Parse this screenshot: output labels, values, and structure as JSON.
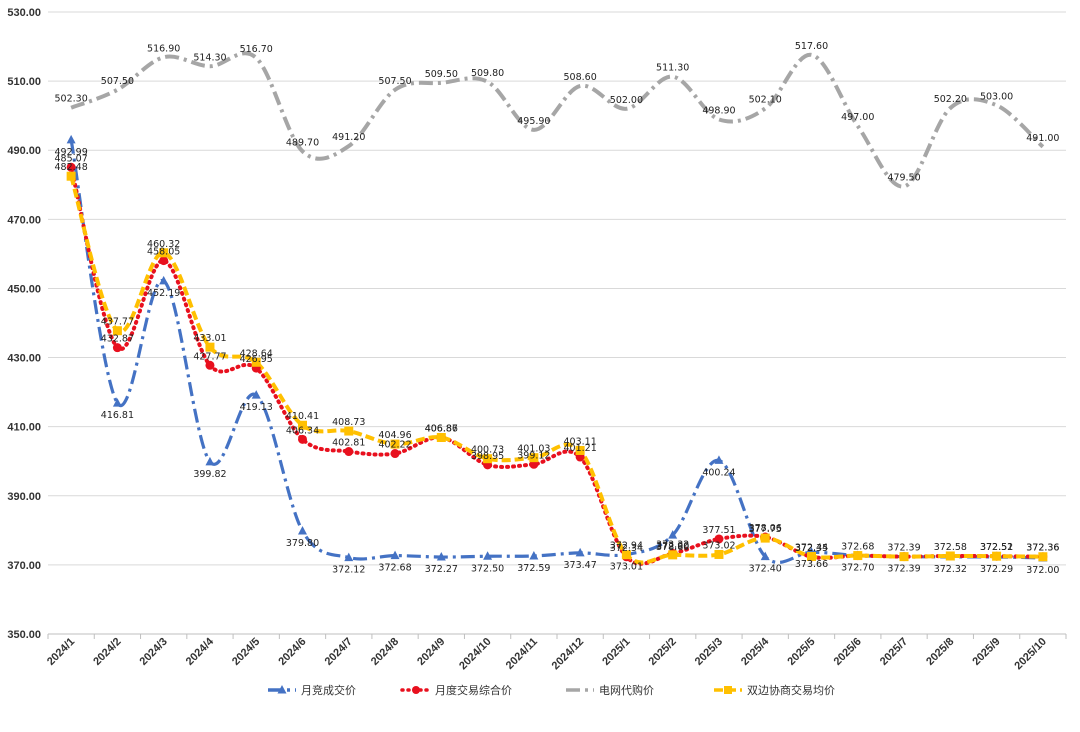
{
  "chart_data": {
    "type": "line",
    "title": "",
    "xlabel": "",
    "ylabel": "",
    "ylim": [
      350,
      530
    ],
    "yticks": [
      "350.00",
      "370.00",
      "390.00",
      "410.00",
      "430.00",
      "450.00",
      "470.00",
      "490.00",
      "510.00",
      "530.00"
    ],
    "categories": [
      "2024/1",
      "2024/2",
      "2024/3",
      "2024/4",
      "2024/5",
      "2024/6",
      "2024/7",
      "2024/8",
      "2024/9",
      "2024/10",
      "2024/11",
      "2024/12",
      "2025/1",
      "2025/2",
      "2025/3",
      "2025/4",
      "2025/5",
      "2025/6",
      "2025/7",
      "2025/8",
      "2025/9",
      "2025/10"
    ],
    "legend_position": "bottom",
    "series": [
      {
        "name": "月竞成交价",
        "color": "#4472C4",
        "marker": "triangle",
        "dash": "dashdot",
        "values": [
          492.99,
          416.81,
          452.19,
          399.82,
          419.13,
          379.8,
          372.12,
          372.68,
          372.27,
          372.5,
          372.59,
          373.47,
          373.01,
          378.6,
          400.24,
          372.4,
          373.66,
          372.7,
          372.39,
          372.32,
          372.29,
          372.0
        ],
        "labels": [
          "492.99",
          "416.81",
          "452.19",
          "399.82",
          "419.13",
          "379.80",
          "372.12",
          "372.68",
          "372.27",
          "372.50",
          "372.59",
          "373.47",
          "373.01",
          "378.60",
          "400.24",
          "372.40",
          "373.66",
          "372.70",
          "372.39",
          "372.32",
          "372.29",
          "372.00"
        ]
      },
      {
        "name": "月度交易综合价",
        "color": "#E8101E",
        "marker": "circle",
        "dash": "dotted",
        "values": [
          485.07,
          432.87,
          458.05,
          427.77,
          426.95,
          406.34,
          402.81,
          402.22,
          406.86,
          398.95,
          399.12,
          401.21,
          372.34,
          373.32,
          377.51,
          378.06,
          372.35,
          372.68,
          372.39,
          372.58,
          372.51,
          372.36
        ],
        "labels": [
          "485.07",
          "432.87",
          "458.05",
          "427.77",
          "426.95",
          "406.34",
          "402.81",
          "402.22",
          "406.86",
          "398.95",
          "399.12",
          "401.21",
          "372.34",
          "373.32",
          "377.51",
          "378.06",
          "372.35",
          "372.68",
          "372.39",
          "372.58",
          "372.51",
          "372.36"
        ]
      },
      {
        "name": "电网代购价",
        "color": "#A6A6A6",
        "marker": "none",
        "dash": "dashdot",
        "values": [
          502.3,
          507.5,
          516.9,
          514.3,
          516.7,
          489.7,
          491.2,
          507.5,
          509.5,
          509.8,
          495.9,
          508.6,
          502.0,
          511.3,
          498.9,
          502.1,
          517.6,
          497.0,
          479.5,
          502.2,
          503.0,
          491.0
        ],
        "labels": [
          "502.30",
          "507.50",
          "516.90",
          "514.30",
          "516.70",
          "489.70",
          "491.20",
          "507.50",
          "509.50",
          "509.80",
          "495.90",
          "508.60",
          "502.00",
          "511.30",
          "498.90",
          "502.10",
          "517.60",
          "497.00",
          "479.50",
          "502.20",
          "503.00",
          "491.00"
        ]
      },
      {
        "name": "双边协商交易均价",
        "color": "#FFC000",
        "marker": "square",
        "dash": "dashed",
        "values": [
          482.48,
          437.77,
          460.32,
          433.01,
          428.64,
          410.41,
          408.73,
          404.96,
          406.87,
          400.73,
          401.03,
          403.11,
          372.94,
          372.9,
          373.02,
          377.75,
          372.44,
          372.7,
          372.39,
          372.58,
          372.52,
          372.36
        ],
        "labels": [
          "482.48",
          "437.77",
          "460.32",
          "433.01",
          "428.64",
          "410.41",
          "408.73",
          "404.96",
          "406.87",
          "400.73",
          "401.03",
          "403.11",
          "372.94",
          "372.90",
          "373.02",
          "377.75",
          "372.44",
          "",
          "",
          "",
          "372.52",
          "372.36"
        ]
      }
    ]
  }
}
